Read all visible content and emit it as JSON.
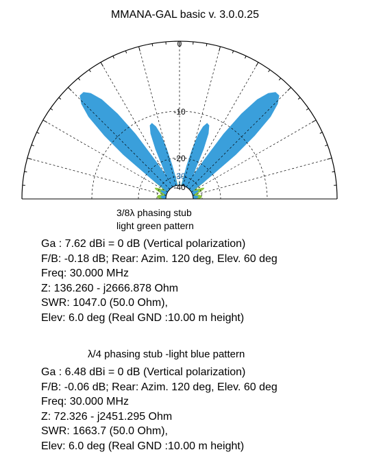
{
  "header": {
    "title": "MMANA-GAL basic    v. 3.0.0.25"
  },
  "chart_data": {
    "type": "polar-elevation",
    "angle_range": [
      0,
      180
    ],
    "radial_unit": "dB",
    "radial_ticks": [
      "0",
      "-10",
      "-20",
      "-30",
      "-40"
    ],
    "tick_text_colors": [
      "#000000",
      "#000000",
      "#000000",
      "#1565a8",
      "#000000"
    ],
    "grid": true,
    "angle_grid_step_deg": 15,
    "radial_ticks_db": [
      0,
      -10,
      -20,
      -30,
      -40
    ],
    "series": [
      {
        "label": "3/8λ phasing stub light green pattern",
        "color": "#8cc63e",
        "points": [
          [
            0,
            -32.5
          ],
          [
            2,
            -31.0
          ],
          [
            4,
            -30.4
          ],
          [
            6,
            -30.0
          ],
          [
            8,
            -30.2
          ],
          [
            10,
            -30.8
          ],
          [
            12,
            -32.5
          ],
          [
            14,
            -34.0
          ],
          [
            16,
            -33.5
          ],
          [
            18,
            -31.5
          ],
          [
            20,
            -29.5
          ],
          [
            22,
            -28.0
          ],
          [
            24,
            -27.5
          ],
          [
            26,
            -28.5
          ],
          [
            28,
            -31.0
          ],
          [
            30,
            -33.0
          ],
          [
            32,
            -31.0
          ],
          [
            34,
            -26.5
          ],
          [
            36,
            -22.5
          ],
          [
            38,
            -19.5
          ],
          [
            40,
            -17.5
          ],
          [
            42,
            -16.3
          ],
          [
            44,
            -16.0
          ],
          [
            46,
            -16.5
          ],
          [
            48,
            -17.5
          ],
          [
            50,
            -19.0
          ],
          [
            52,
            -21.0
          ],
          [
            54,
            -23.5
          ],
          [
            56,
            -27.5
          ],
          [
            58,
            -33.0
          ],
          [
            60,
            -38.5
          ],
          [
            62,
            -33.0
          ],
          [
            64,
            -27.5
          ],
          [
            66,
            -24.0
          ],
          [
            68,
            -22.0
          ],
          [
            70,
            -21.0
          ],
          [
            72,
            -20.8
          ],
          [
            74,
            -21.5
          ],
          [
            76,
            -23.0
          ],
          [
            78,
            -25.5
          ],
          [
            80,
            -30.0
          ],
          [
            82,
            -36.0
          ],
          [
            84,
            -40.5
          ],
          [
            86,
            -39.5
          ],
          [
            88,
            -35.5
          ],
          [
            90,
            -33.5
          ]
        ]
      },
      {
        "label": "λ/4 phasing stub -light blue pattern",
        "color": "#3a9fdb",
        "points": [
          [
            0,
            -36.0
          ],
          [
            2,
            -34.5
          ],
          [
            4,
            -33.6
          ],
          [
            6,
            -33.0
          ],
          [
            8,
            -33.2
          ],
          [
            10,
            -34.0
          ],
          [
            12,
            -35.5
          ],
          [
            14,
            -37.0
          ],
          [
            16,
            -37.0
          ],
          [
            18,
            -35.5
          ],
          [
            20,
            -33.5
          ],
          [
            22,
            -32.0
          ],
          [
            24,
            -31.5
          ],
          [
            26,
            -32.5
          ],
          [
            28,
            -34.5
          ],
          [
            30,
            -36.0
          ],
          [
            32,
            -33.5
          ],
          [
            34,
            -27.0
          ],
          [
            36,
            -20.0
          ],
          [
            38,
            -13.5
          ],
          [
            40,
            -8.5
          ],
          [
            42,
            -5.0
          ],
          [
            44,
            -3.0
          ],
          [
            46,
            -2.0
          ],
          [
            48,
            -2.0
          ],
          [
            50,
            -2.8
          ],
          [
            52,
            -4.5
          ],
          [
            54,
            -7.5
          ],
          [
            56,
            -12.0
          ],
          [
            58,
            -19.0
          ],
          [
            60,
            -27.0
          ],
          [
            62,
            -23.0
          ],
          [
            64,
            -17.0
          ],
          [
            66,
            -13.5
          ],
          [
            68,
            -11.8
          ],
          [
            70,
            -11.5
          ],
          [
            72,
            -12.5
          ],
          [
            74,
            -14.5
          ],
          [
            76,
            -18.0
          ],
          [
            78,
            -23.5
          ],
          [
            80,
            -31.0
          ],
          [
            82,
            -37.5
          ],
          [
            84,
            -40.5
          ],
          [
            86,
            -39.0
          ],
          [
            88,
            -35.5
          ],
          [
            90,
            -33.5
          ]
        ]
      }
    ]
  },
  "captions": {
    "green_line1": "3/8λ phasing stub",
    "green_line2": "light green pattern",
    "blue_title": "λ/4 phasing stub -light blue pattern"
  },
  "green_info": {
    "ga": "Ga : 7.62 dBi = 0 dB  (Vertical polarization)",
    "fb": "F/B: -0.18 dB; Rear: Azim. 120 deg,  Elev. 60 deg",
    "freq": "Freq: 30.000 MHz",
    "z": "Z: 136.260 - j2666.878 Ohm",
    "swr": "SWR: 1047.0 (50.0 Ohm),",
    "elev": "Elev: 6.0 deg (Real GND  :10.00 m height)"
  },
  "blue_info": {
    "ga": "Ga : 6.48 dBi = 0 dB  (Vertical polarization)",
    "fb": "F/B: -0.06 dB; Rear: Azim. 120 deg,  Elev. 60 deg",
    "freq": "Freq: 30.000 MHz",
    "z": "Z: 72.326 - j2451.295 Ohm",
    "swr": "SWR: 1663.7 (50.0 Ohm),",
    "elev": "Elev: 6.0 deg (Real GND  :10.00 m height)"
  }
}
